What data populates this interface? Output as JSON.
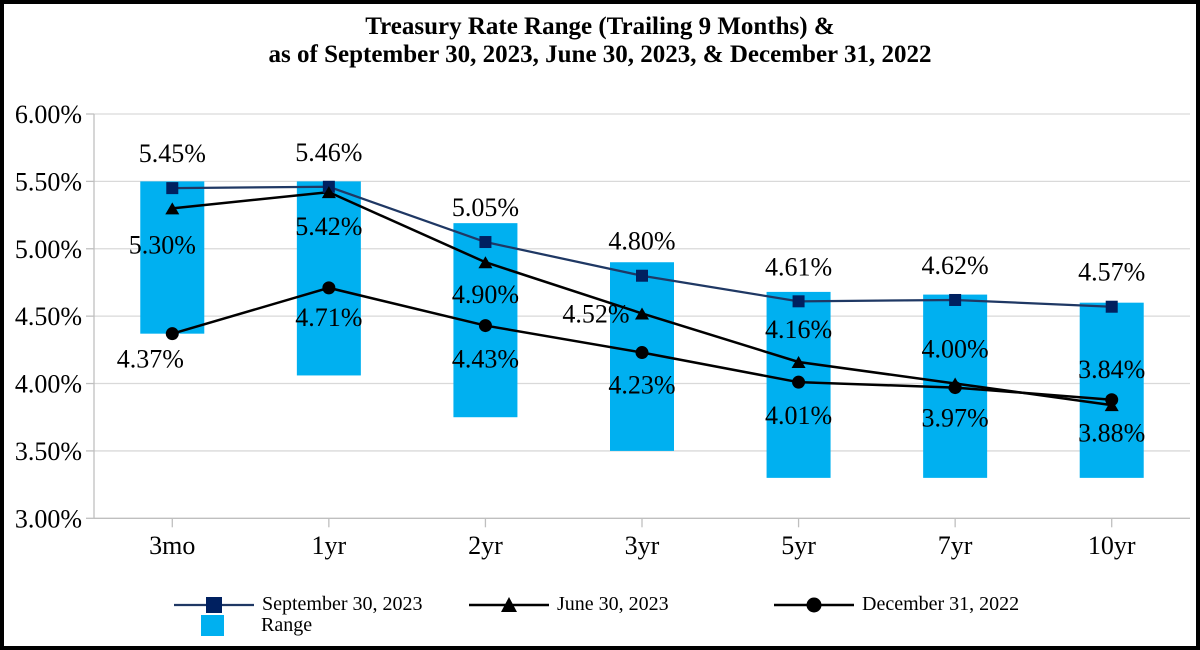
{
  "chart_data": {
    "type": "bar-line-combo",
    "title": "Treasury Rate Range (Trailing 9 Months) &",
    "subtitle": "as of September 30, 2023, June 30, 2023, & December 31, 2022",
    "categories": [
      "3mo",
      "1yr",
      "2yr",
      "3yr",
      "5yr",
      "7yr",
      "10yr"
    ],
    "y_axis": {
      "min": 3.0,
      "max": 6.0,
      "step": 0.5,
      "tick_labels": [
        "6.00%",
        "5.50%",
        "5.00%",
        "4.50%",
        "4.00%",
        "3.50%",
        "3.00%"
      ]
    },
    "grid": true,
    "legend_position": "bottom-left",
    "range_bars": {
      "name": "Range",
      "color": "#00B0F0",
      "low": [
        4.37,
        4.06,
        3.75,
        3.5,
        3.3,
        3.3,
        3.3
      ],
      "high": [
        5.5,
        5.5,
        5.19,
        4.9,
        4.68,
        4.66,
        4.6
      ]
    },
    "series": [
      {
        "id": "sep-30-2023",
        "name": "September 30, 2023",
        "color": "#1F3864",
        "line_width": 2.25,
        "marker": "square",
        "marker_color": "#002060",
        "values": [
          5.45,
          5.46,
          5.05,
          4.8,
          4.61,
          4.62,
          4.57
        ],
        "label_offsets": [
          [
            0,
            -35
          ],
          [
            0,
            -35
          ],
          [
            0,
            -35
          ],
          [
            0,
            -35
          ],
          [
            0,
            -35
          ],
          [
            0,
            -35
          ],
          [
            0,
            -35
          ]
        ]
      },
      {
        "id": "jun-30-2023",
        "name": "June 30, 2023",
        "color": "#000000",
        "line_width": 2.5,
        "marker": "triangle",
        "marker_color": "#000000",
        "values": [
          5.3,
          5.42,
          4.9,
          4.52,
          4.16,
          4.0,
          3.84
        ],
        "label_offsets": [
          [
            -10,
            36
          ],
          [
            0,
            34
          ],
          [
            0,
            32
          ],
          [
            -46,
            0
          ],
          [
            0,
            -33
          ],
          [
            0,
            -35
          ],
          [
            0,
            -36
          ]
        ]
      },
      {
        "id": "dec-31-2022",
        "name": "December 31, 2022",
        "color": "#000000",
        "line_width": 2.5,
        "marker": "circle",
        "marker_color": "#000000",
        "values": [
          4.37,
          4.71,
          4.43,
          4.23,
          4.01,
          3.97,
          3.88
        ],
        "label_offsets": [
          [
            -22,
            25
          ],
          [
            0,
            29
          ],
          [
            0,
            33
          ],
          [
            0,
            32
          ],
          [
            0,
            33
          ],
          [
            0,
            30
          ],
          [
            0,
            33
          ]
        ]
      }
    ],
    "data_label_suffix": "%"
  }
}
